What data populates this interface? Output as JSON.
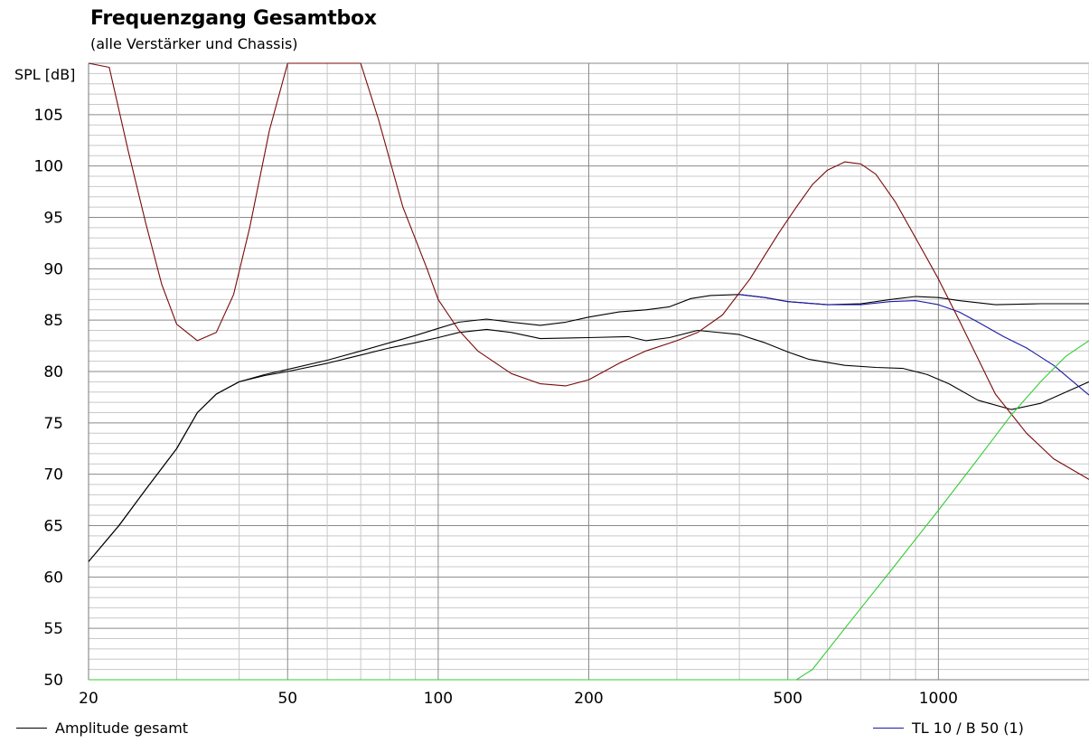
{
  "chart_data": {
    "type": "line",
    "title": "Frequenzgang Gesamtbox",
    "subtitle": "(alle Verstärker und Chassis)",
    "ylabel": "SPL [dB]",
    "xlabel": "",
    "x_scale": "log",
    "xlim": [
      20,
      2000
    ],
    "ylim": [
      50,
      110
    ],
    "grid": true,
    "x_ticks": [
      20,
      50,
      100,
      200,
      500,
      1000
    ],
    "y_ticks": [
      50,
      55,
      60,
      65,
      70,
      75,
      80,
      85,
      90,
      95,
      100,
      105
    ],
    "series": [
      {
        "name": "Amplitude gesamt",
        "color": "#000000",
        "points": [
          [
            20,
            61.5
          ],
          [
            23,
            65
          ],
          [
            26,
            68.5
          ],
          [
            30,
            72.5
          ],
          [
            33,
            76
          ],
          [
            36,
            77.8
          ],
          [
            40,
            79
          ],
          [
            45,
            79.7
          ],
          [
            50,
            80.2
          ],
          [
            60,
            81.1
          ],
          [
            70,
            82.0
          ],
          [
            80,
            82.8
          ],
          [
            90,
            83.5
          ],
          [
            100,
            84.2
          ],
          [
            110,
            84.8
          ],
          [
            125,
            85.1
          ],
          [
            140,
            84.8
          ],
          [
            160,
            84.5
          ],
          [
            180,
            84.8
          ],
          [
            200,
            85.3
          ],
          [
            230,
            85.8
          ],
          [
            260,
            86.0
          ],
          [
            290,
            86.3
          ],
          [
            320,
            87.1
          ],
          [
            350,
            87.4
          ],
          [
            400,
            87.5
          ],
          [
            450,
            87.2
          ],
          [
            500,
            86.8
          ],
          [
            600,
            86.5
          ],
          [
            700,
            86.6
          ],
          [
            800,
            87.0
          ],
          [
            900,
            87.3
          ],
          [
            1000,
            87.2
          ],
          [
            1100,
            86.9
          ],
          [
            1300,
            86.5
          ],
          [
            1600,
            86.6
          ],
          [
            2000,
            86.6
          ]
        ]
      },
      {
        "name": "",
        "color": "#000000",
        "points": [
          [
            20,
            61.5
          ],
          [
            23,
            65
          ],
          [
            26,
            68.5
          ],
          [
            30,
            72.5
          ],
          [
            33,
            76
          ],
          [
            36,
            77.8
          ],
          [
            40,
            79
          ],
          [
            45,
            79.6
          ],
          [
            50,
            80.0
          ],
          [
            60,
            80.8
          ],
          [
            70,
            81.6
          ],
          [
            80,
            82.3
          ],
          [
            90,
            82.8
          ],
          [
            100,
            83.3
          ],
          [
            110,
            83.8
          ],
          [
            125,
            84.1
          ],
          [
            140,
            83.8
          ],
          [
            160,
            83.2
          ],
          [
            200,
            83.3
          ],
          [
            240,
            83.4
          ],
          [
            260,
            83.0
          ],
          [
            290,
            83.3
          ],
          [
            330,
            84.0
          ],
          [
            400,
            83.6
          ],
          [
            450,
            82.8
          ],
          [
            500,
            81.9
          ],
          [
            550,
            81.2
          ],
          [
            650,
            80.6
          ],
          [
            750,
            80.4
          ],
          [
            850,
            80.3
          ],
          [
            950,
            79.7
          ],
          [
            1050,
            78.8
          ],
          [
            1200,
            77.2
          ],
          [
            1400,
            76.3
          ],
          [
            1600,
            76.9
          ],
          [
            2000,
            79.0
          ]
        ]
      },
      {
        "name": "TL 10 / B 50 (1)",
        "color": "#1a1aa6",
        "points": [
          [
            400,
            87.5
          ],
          [
            450,
            87.2
          ],
          [
            500,
            86.8
          ],
          [
            600,
            86.5
          ],
          [
            700,
            86.5
          ],
          [
            800,
            86.8
          ],
          [
            900,
            86.9
          ],
          [
            1000,
            86.5
          ],
          [
            1100,
            85.8
          ],
          [
            1200,
            84.8
          ],
          [
            1350,
            83.4
          ],
          [
            1500,
            82.3
          ],
          [
            1700,
            80.6
          ],
          [
            2000,
            77.7
          ]
        ]
      },
      {
        "name": "",
        "color": "#7a0a0a",
        "points": [
          [
            20,
            110.0
          ],
          [
            22,
            109.6
          ],
          [
            24,
            101.5
          ],
          [
            26,
            94.5
          ],
          [
            28,
            88.5
          ],
          [
            30,
            84.6
          ],
          [
            33,
            83.0
          ],
          [
            36,
            83.8
          ],
          [
            39,
            87.5
          ],
          [
            42,
            94.0
          ],
          [
            46,
            103.5
          ],
          [
            50,
            110.0
          ],
          [
            70,
            110.0
          ],
          [
            76,
            104.5
          ],
          [
            85,
            96.0
          ],
          [
            95,
            90.0
          ],
          [
            100,
            87.0
          ],
          [
            110,
            84.0
          ],
          [
            120,
            82.0
          ],
          [
            140,
            79.8
          ],
          [
            160,
            78.8
          ],
          [
            180,
            78.6
          ],
          [
            200,
            79.2
          ],
          [
            230,
            80.8
          ],
          [
            260,
            82.0
          ],
          [
            300,
            83.0
          ],
          [
            330,
            83.8
          ],
          [
            370,
            85.5
          ],
          [
            420,
            89.0
          ],
          [
            480,
            93.5
          ],
          [
            520,
            96.0
          ],
          [
            560,
            98.2
          ],
          [
            600,
            99.6
          ],
          [
            650,
            100.4
          ],
          [
            700,
            100.2
          ],
          [
            750,
            99.2
          ],
          [
            820,
            96.5
          ],
          [
            900,
            93.0
          ],
          [
            1000,
            89.0
          ],
          [
            1100,
            85.0
          ],
          [
            1300,
            77.8
          ],
          [
            1500,
            74.0
          ],
          [
            1700,
            71.5
          ],
          [
            2000,
            69.5
          ]
        ]
      },
      {
        "name": "",
        "color": "#33cc33",
        "points": [
          [
            20,
            50.0
          ],
          [
            520,
            50.0
          ],
          [
            560,
            51.0
          ],
          [
            650,
            55.0
          ],
          [
            800,
            60.5
          ],
          [
            1000,
            66.5
          ],
          [
            1200,
            71.5
          ],
          [
            1400,
            75.8
          ],
          [
            1600,
            79.0
          ],
          [
            1800,
            81.5
          ],
          [
            2000,
            83.0
          ]
        ]
      }
    ],
    "legend_left": "Amplitude gesamt",
    "legend_right": "TL 10 / B 50 (1)"
  }
}
